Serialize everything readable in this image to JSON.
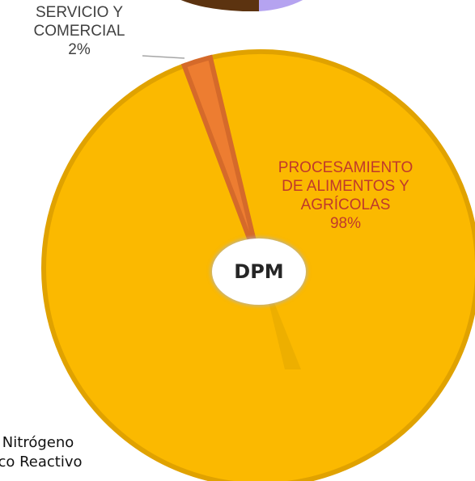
{
  "chart_data": {
    "type": "pie",
    "title": "DPM",
    "categories": [
      "PROCESAMIENTO DE ALIMENTOS Y AGRÍCOLAS",
      "SERVICIO Y COMERCIAL"
    ],
    "values": [
      98,
      2
    ],
    "value_labels": [
      "98%",
      "2%"
    ],
    "colors": [
      "#fbb900",
      "#ed7d31"
    ],
    "slice_border_colors": [
      "#e0a200",
      "#d56a2a"
    ],
    "top_partial_colors": [
      "#5c3310",
      "#b5a3f0"
    ]
  },
  "labels": {
    "service_name": "SERVICIO Y\nCOMERCIAL",
    "service_pct": "2%",
    "food_name": "PROCESAMIENTO\nDE ALIMENTOS Y\nAGRÍCOLAS",
    "food_pct": "98%",
    "center": "DPM"
  },
  "bottom_text": {
    "line1": "e Nitrógeno",
    "line2": "ánico Reactivo"
  }
}
